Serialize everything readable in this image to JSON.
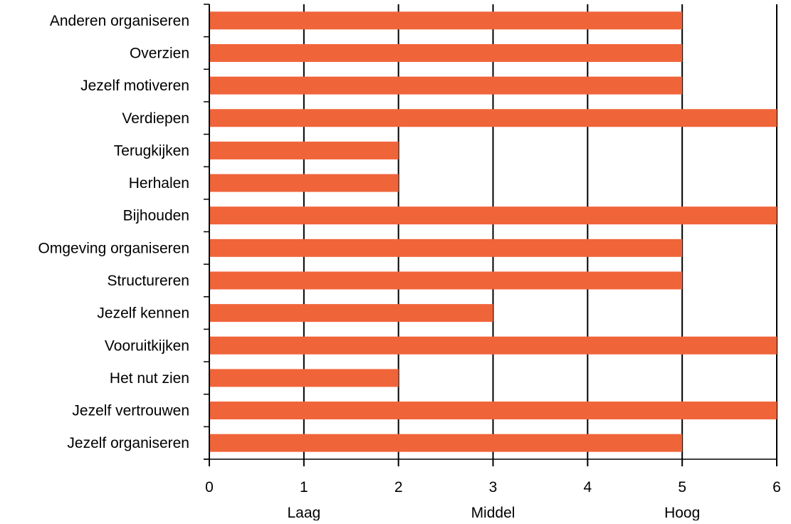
{
  "chart_data": {
    "type": "bar",
    "orientation": "horizontal",
    "categories": [
      "Anderen organiseren",
      "Overzien",
      "Jezelf motiveren",
      "Verdiepen",
      "Terugkijken",
      "Herhalen",
      "Bijhouden",
      "Omgeving organiseren",
      "Structureren",
      "Jezelf kennen",
      "Vooruitkijken",
      "Het nut zien",
      "Jezelf vertrouwen",
      "Jezelf organiseren"
    ],
    "values": [
      5,
      5,
      5,
      6,
      2,
      2,
      6,
      5,
      5,
      3,
      6,
      2,
      6,
      5
    ],
    "xlim": [
      0,
      6
    ],
    "xticks": [
      "0",
      "1",
      "2",
      "3",
      "4",
      "5",
      "6"
    ],
    "level_labels": [
      {
        "text": "Laag",
        "value": 1
      },
      {
        "text": "Middel",
        "value": 3
      },
      {
        "text": "Hoog",
        "value": 5
      }
    ],
    "grid": "vertical",
    "bar_color": "#f0643a",
    "title": "",
    "xlabel": "",
    "ylabel": ""
  }
}
